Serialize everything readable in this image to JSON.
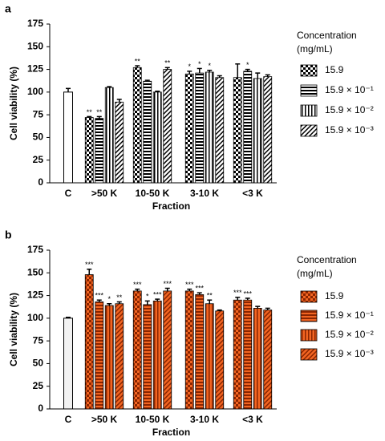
{
  "chart_data": [
    {
      "type": "bar",
      "panel": "a",
      "x_label": "Fraction",
      "y_label": "Cell viability (%)",
      "legend_title": [
        "Concentration",
        "(mg/mL)"
      ],
      "categories": [
        "C",
        ">50 K",
        "10-50 K",
        "3-10 K",
        "<3 K"
      ],
      "values": [
        100,
        null,
        null,
        null,
        null
      ],
      "errors": [
        4,
        null,
        null,
        null,
        null
      ],
      "color": "#ffffff",
      "ink": "#000000",
      "ylim": [
        0,
        175
      ],
      "yticks": [
        0,
        25,
        50,
        75,
        100,
        125,
        150,
        175
      ],
      "series": [
        {
          "name": "15.9",
          "pattern": "checker",
          "color": "#ffffff",
          "values": [
            null,
            72,
            127,
            120,
            116
          ],
          "errors": [
            null,
            1,
            2,
            3,
            15
          ],
          "annotations": [
            null,
            "**",
            "**",
            "*",
            null
          ]
        },
        {
          "name": "15.9 × 10⁻¹",
          "pattern": "horizontal",
          "color": "#ffffff",
          "values": [
            null,
            71,
            112,
            121,
            123
          ],
          "errors": [
            null,
            2,
            1,
            5,
            2
          ],
          "annotations": [
            null,
            "**",
            null,
            "*",
            "*"
          ]
        },
        {
          "name": "15.9 × 10⁻²",
          "pattern": "vertical",
          "color": "#ffffff",
          "values": [
            null,
            105,
            100,
            122,
            115
          ],
          "errors": [
            null,
            1,
            1,
            2,
            6
          ],
          "annotations": [
            null,
            null,
            null,
            "*",
            null
          ]
        },
        {
          "name": "15.9 × 10⁻³",
          "pattern": "diagonal",
          "color": "#ffffff",
          "values": [
            null,
            89,
            125,
            116,
            117
          ],
          "errors": [
            null,
            3,
            2,
            2,
            2
          ],
          "annotations": [
            null,
            null,
            "**",
            null,
            null
          ]
        }
      ]
    },
    {
      "type": "bar",
      "panel": "b",
      "x_label": "Fraction",
      "y_label": "Cell viability (%)",
      "legend_title": [
        "Concentration",
        "(mg/mL)"
      ],
      "categories": [
        "C",
        ">50 K",
        "10-50 K",
        "3-10 K",
        "<3 K"
      ],
      "values": [
        100,
        null,
        null,
        null,
        null
      ],
      "errors": [
        1,
        null,
        null,
        null,
        null
      ],
      "color": "#f2f2f2",
      "ink": "#8b2500",
      "ylim": [
        0,
        175
      ],
      "yticks": [
        0,
        25,
        50,
        75,
        100,
        125,
        150,
        175
      ],
      "series": [
        {
          "name": "15.9",
          "pattern": "checker",
          "color": "#f26522",
          "values": [
            null,
            148,
            130,
            130,
            120
          ],
          "errors": [
            null,
            6,
            2,
            2,
            3
          ],
          "annotations": [
            null,
            "***",
            "***",
            "***",
            "***"
          ]
        },
        {
          "name": "15.9 × 10⁻¹",
          "pattern": "horizontal",
          "color": "#f26522",
          "values": [
            null,
            118,
            115,
            126,
            120
          ],
          "errors": [
            null,
            2,
            4,
            2,
            2
          ],
          "annotations": [
            null,
            "***",
            "*",
            "***",
            "***"
          ]
        },
        {
          "name": "15.9 × 10⁻²",
          "pattern": "vertical",
          "color": "#f26522",
          "values": [
            null,
            114,
            119,
            116,
            111
          ],
          "errors": [
            null,
            2,
            2,
            4,
            2
          ],
          "annotations": [
            null,
            "*",
            "***",
            "**",
            null
          ]
        },
        {
          "name": "15.9 × 10⁻³",
          "pattern": "diagonal",
          "color": "#f26522",
          "values": [
            null,
            116,
            130,
            108,
            109
          ],
          "errors": [
            null,
            2,
            3,
            1,
            2
          ],
          "annotations": [
            null,
            "**",
            "***",
            null,
            null
          ]
        }
      ]
    }
  ]
}
